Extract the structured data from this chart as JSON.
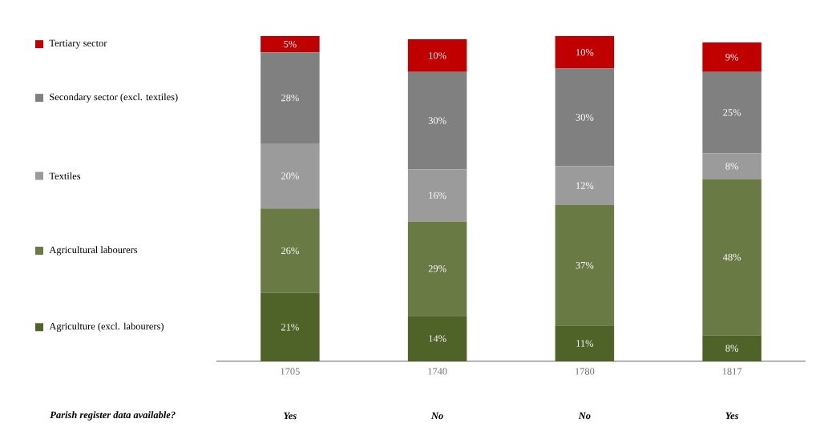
{
  "chart_data": {
    "type": "bar",
    "stacked": true,
    "legend": "left",
    "categories": [
      "1705",
      "1740",
      "1780",
      "1817"
    ],
    "series": [
      {
        "name": "Agriculture  (excl. labourers)",
        "color": "#4f6228",
        "values": [
          21,
          14,
          11,
          8
        ],
        "value_labels": [
          "21%",
          "14%",
          "11%",
          "8%"
        ]
      },
      {
        "name": "Agricultural  labourers",
        "color": "#6a7a45",
        "values": [
          26,
          29,
          37,
          48
        ],
        "value_labels": [
          "26%",
          "29%",
          "37%",
          "48%"
        ]
      },
      {
        "name": "Textiles",
        "color": "#9b9b9b",
        "values": [
          20,
          16,
          12,
          8
        ],
        "value_labels": [
          "20%",
          "16%",
          "12%",
          "8%"
        ]
      },
      {
        "name": "Secondary sector (excl. textiles)",
        "color": "#808080",
        "values": [
          28,
          30,
          30,
          25
        ],
        "value_labels": [
          "28%",
          "30%",
          "30%",
          "25%"
        ]
      },
      {
        "name": "Tertiary sector",
        "color": "#c00000",
        "values": [
          5,
          10,
          10,
          9
        ],
        "value_labels": [
          "5%",
          "10%",
          "10%",
          "9%"
        ]
      }
    ],
    "annotations": [
      "Parish register data available?",
      "Yes",
      "No",
      "No",
      "Yes"
    ]
  }
}
